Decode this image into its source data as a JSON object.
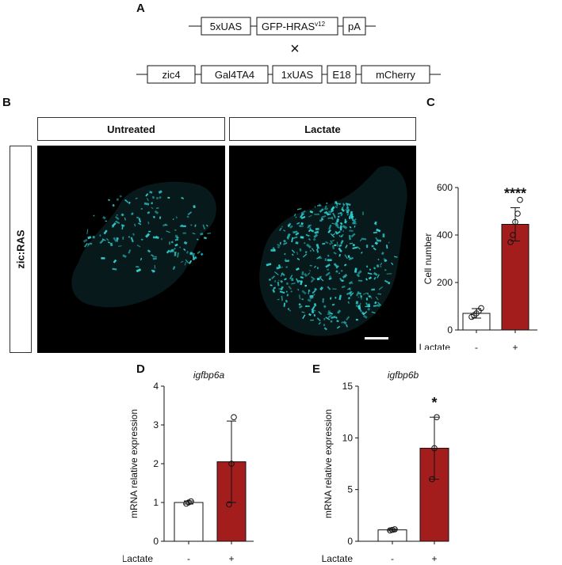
{
  "panels": {
    "A": "A",
    "B": "B",
    "C": "C",
    "D": "D",
    "E": "E"
  },
  "construct": {
    "row1": [
      "5xUAS",
      "GFP-HRAS",
      "pA"
    ],
    "row1_superscript": "v12",
    "cross_symbol": "×",
    "row2": [
      "zic4",
      "Gal4TA4",
      "1xUAS",
      "E18",
      "mCherry"
    ]
  },
  "images": {
    "col1_label": "Untreated",
    "col2_label": "Lactate",
    "row_label": "zic:RAS",
    "signal_color": "#2fd6d6"
  },
  "treatment_label": "Lactate",
  "chart_data": [
    {
      "panel": "C",
      "type": "bar",
      "title": "",
      "categories": [
        "-",
        "+"
      ],
      "values": [
        70,
        445
      ],
      "error": [
        20,
        70
      ],
      "points": [
        [
          55,
          62,
          70,
          80,
          92
        ],
        [
          370,
          400,
          455,
          490,
          548
        ]
      ],
      "ylabel": "Cell number",
      "xlabel": "Lactate",
      "ylim": [
        0,
        600
      ],
      "yticks": [
        "0",
        "200",
        "400",
        "600"
      ],
      "significance": "****",
      "colors": [
        "#ffffff",
        "#a31d1d"
      ]
    },
    {
      "panel": "D",
      "type": "bar",
      "title": "igfbp6a",
      "categories": [
        "-",
        "+"
      ],
      "values": [
        1.0,
        2.05
      ],
      "error": [
        0.04,
        1.05
      ],
      "points": [
        [
          0.97,
          1.0,
          1.03
        ],
        [
          0.95,
          2.0,
          3.2
        ]
      ],
      "ylabel": "mRNA relative expression",
      "xlabel": "Lactate",
      "ylim": [
        0,
        4
      ],
      "yticks": [
        "0",
        "1",
        "2",
        "3",
        "4"
      ],
      "significance": "",
      "colors": [
        "#ffffff",
        "#a31d1d"
      ]
    },
    {
      "panel": "E",
      "type": "bar",
      "title": "igfbp6b",
      "categories": [
        "-",
        "+"
      ],
      "values": [
        1.1,
        9.0
      ],
      "error": [
        0.1,
        3.0
      ],
      "points": [
        [
          1.05,
          1.1,
          1.15
        ],
        [
          6.0,
          9.0,
          12.0
        ]
      ],
      "ylabel": "mRNA relative expression",
      "xlabel": "Lactate",
      "ylim": [
        0,
        15
      ],
      "yticks": [
        "0",
        "5",
        "10",
        "15"
      ],
      "significance": "*",
      "colors": [
        "#ffffff",
        "#a31d1d"
      ]
    }
  ]
}
